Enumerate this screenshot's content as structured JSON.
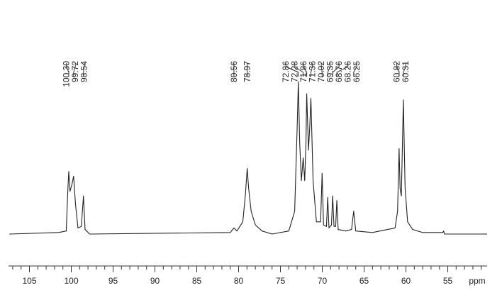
{
  "chart_data": {
    "type": "line",
    "xlabel": "ppm",
    "xlim": [
      107.5,
      50.3
    ],
    "ylim": [
      0,
      100
    ],
    "xticks": [
      105,
      100,
      95,
      90,
      85,
      80,
      75,
      70,
      65,
      60,
      55
    ],
    "xminorticks": [
      107,
      106,
      104,
      103,
      102,
      101,
      99,
      98,
      97,
      96,
      94,
      93,
      92,
      91,
      89,
      88,
      87,
      86,
      84,
      83,
      82,
      81,
      79,
      78,
      77,
      76,
      74,
      73,
      72,
      71,
      69,
      68,
      67,
      66,
      64,
      63,
      62,
      61,
      59,
      58,
      57,
      56,
      54,
      53,
      52,
      51
    ],
    "color": "#222222",
    "x": [
      107.4,
      101.5,
      100.6,
      100.4,
      100.3,
      100.15,
      99.9,
      99.72,
      99.5,
      99.2,
      98.8,
      98.54,
      98.35,
      97.8,
      81,
      80.56,
      80.2,
      79.5,
      79.2,
      78.97,
      78.8,
      78.5,
      78.0,
      77.2,
      76,
      74,
      73.3,
      73.0,
      72.86,
      72.7,
      72.5,
      72.28,
      72.1,
      71.95,
      71.86,
      71.65,
      71.5,
      71.36,
      71.1,
      70.7,
      70.2,
      70.02,
      69.85,
      69.5,
      69.35,
      69.2,
      68.9,
      68.76,
      68.6,
      68.4,
      68.26,
      68.1,
      67.2,
      66.5,
      66.25,
      66.0,
      64,
      61.3,
      61.0,
      60.82,
      60.7,
      60.55,
      60.31,
      60.1,
      59.8,
      59.2,
      58,
      55.6,
      55.5,
      55.4,
      50.3
    ],
    "values": [
      0,
      1,
      2,
      30,
      41,
      28,
      33,
      38,
      20,
      4,
      5,
      25,
      3,
      0,
      1,
      4,
      2,
      8,
      25,
      43,
      30,
      15,
      6,
      2,
      0,
      2,
      15,
      70,
      100,
      60,
      35,
      50,
      35,
      60,
      92,
      55,
      70,
      89,
      35,
      8,
      8,
      40,
      6,
      5,
      24,
      4,
      6,
      25,
      5,
      5,
      22,
      3,
      2,
      3,
      15,
      2,
      1,
      4,
      15,
      56,
      30,
      25,
      88,
      30,
      8,
      3,
      1,
      1,
      2,
      0,
      0
    ],
    "peak_labels": [
      {
        "value": 100.3,
        "label": "100.30"
      },
      {
        "value": 99.72,
        "label": "99.72"
      },
      {
        "value": 98.54,
        "label": "98.54"
      },
      {
        "value": 80.56,
        "label": "80.56"
      },
      {
        "value": 78.97,
        "label": "78.97"
      },
      {
        "value": 72.86,
        "label": "72.86"
      },
      {
        "value": 72.28,
        "label": "72.28"
      },
      {
        "value": 71.86,
        "label": "71.86"
      },
      {
        "value": 71.36,
        "label": "71.36"
      },
      {
        "value": 70.02,
        "label": "70.02"
      },
      {
        "value": 69.35,
        "label": "69.35"
      },
      {
        "value": 68.76,
        "label": "68.76"
      },
      {
        "value": 68.26,
        "label": "68.26"
      },
      {
        "value": 66.25,
        "label": "66.25"
      },
      {
        "value": 60.82,
        "label": "60.82"
      },
      {
        "value": 60.31,
        "label": "60.31"
      }
    ]
  }
}
